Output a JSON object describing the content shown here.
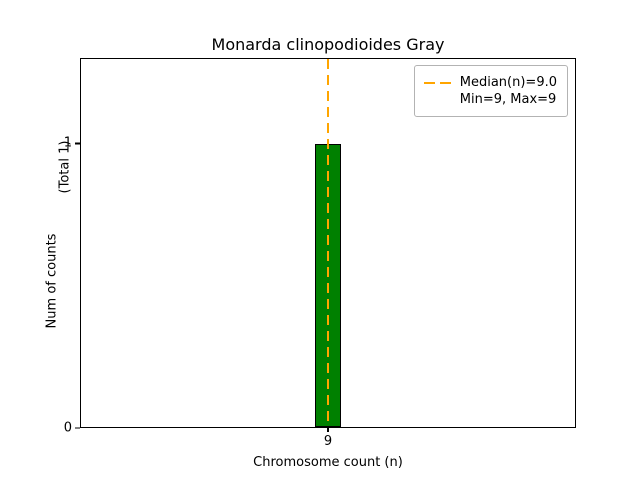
{
  "chart_data": {
    "type": "bar",
    "title": "Monarda clinopodioides Gray",
    "xlabel": "Chromosome count (n)",
    "ylabel": "Num of counts",
    "ylabel_note": "(Total 1)",
    "categories": [
      "9"
    ],
    "values": [
      1
    ],
    "ylim": [
      0,
      1.3
    ],
    "yticks": [
      {
        "value": 0,
        "label": "0"
      },
      {
        "value": 1,
        "label": "1"
      }
    ],
    "bar_color": "#008000",
    "bar_edge_color": "#000000",
    "median_line": {
      "x": 9,
      "value": 9.0,
      "color": "#ffa500",
      "style": "dashed"
    },
    "legend": [
      {
        "label": "Median(n)=9.0",
        "marker": "dashed-line",
        "color": "#ffa500"
      },
      {
        "label": "Min=9, Max=9",
        "marker": "none"
      }
    ],
    "legend_position": "upper right",
    "grid": false,
    "total_counts": 1
  }
}
